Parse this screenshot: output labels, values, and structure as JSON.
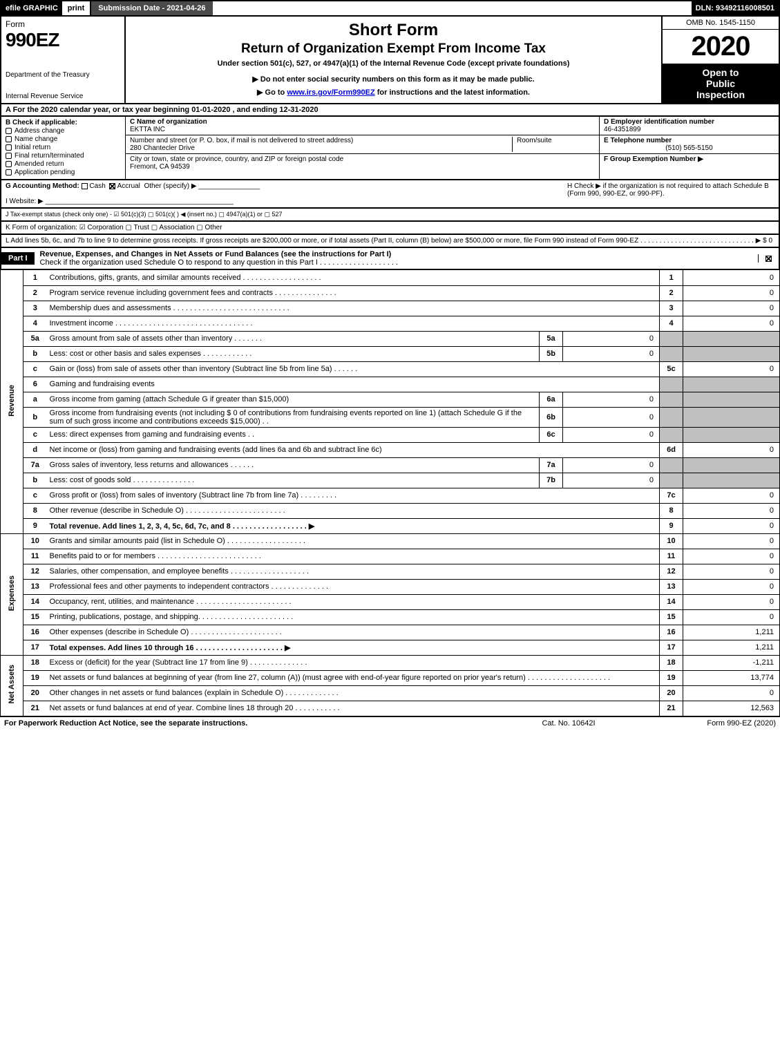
{
  "topbar": {
    "efile": "efile GRAPHIC",
    "print": "print",
    "submission": "Submission Date - 2021-04-26",
    "dln": "DLN: 93492116008501"
  },
  "header": {
    "form_label": "Form",
    "form_code": "990EZ",
    "dept1": "Department of the Treasury",
    "dept2": "Internal Revenue Service",
    "title1": "Short Form",
    "title2": "Return of Organization Exempt From Income Tax",
    "title3": "Under section 501(c), 527, or 4947(a)(1) of the Internal Revenue Code (except private foundations)",
    "title4": "▶ Do not enter social security numbers on this form as it may be made public.",
    "title5_pre": "▶ Go to ",
    "title5_link": "www.irs.gov/Form990EZ",
    "title5_post": " for instructions and the latest information.",
    "omb": "OMB No. 1545-1150",
    "year": "2020",
    "open1": "Open to",
    "open2": "Public",
    "open3": "Inspection"
  },
  "rowA": "A  For the 2020 calendar year, or tax year beginning 01-01-2020 , and ending 12-31-2020",
  "boxB": {
    "hdr": "B  Check if applicable:",
    "items": [
      "Address change",
      "Name change",
      "Initial return",
      "Final return/terminated",
      "Amended return",
      "Application pending"
    ]
  },
  "boxC": {
    "name_lbl": "C Name of organization",
    "name": "EKTTA INC",
    "addr_lbl": "Number and street (or P. O. box, if mail is not delivered to street address)",
    "addr": "280 Chantecler Drive",
    "room_lbl": "Room/suite",
    "city_lbl": "City or town, state or province, country, and ZIP or foreign postal code",
    "city": "Fremont, CA  94539"
  },
  "boxD": {
    "ein_lbl": "D Employer identification number",
    "ein": "46-4351899",
    "tel_lbl": "E Telephone number",
    "tel": "(510) 565-5150",
    "grp_lbl": "F Group Exemption Number  ▶"
  },
  "rowG": {
    "left_pre": "G Accounting Method:   ",
    "cash": "Cash",
    "accrual": "Accrual",
    "other": "Other (specify) ▶",
    "h": "H  Check ▶       if the organization is not required to attach Schedule B (Form 990, 990-EZ, or 990-PF)."
  },
  "rowI": "I Website: ▶",
  "rowJ": "J Tax-exempt status (check only one) -  ☑ 501(c)(3)   ▢ 501(c)(  ) ◀ (insert no.)  ▢ 4947(a)(1) or  ▢ 527",
  "rowK": "K Form of organization:    ☑ Corporation    ▢ Trust    ▢ Association    ▢ Other",
  "rowL": "L Add lines 5b, 6c, and 7b to line 9 to determine gross receipts. If gross receipts are $200,000 or more, or if total assets (Part II, column (B) below) are $500,000 or more, file Form 990 instead of Form 990-EZ  .  .  .  .  .  .  .  .  .  .  .  .  .  .  .  .  .  .  .  .  .  .  .  .  .  .  .  .  .  .  ▶ $ 0",
  "part1": {
    "tag": "Part I",
    "title": "Revenue, Expenses, and Changes in Net Assets or Fund Balances (see the instructions for Part I)",
    "sub": "Check if the organization used Schedule O to respond to any question in this Part I  .  .  .  .  .  .  .  .  .  .  .  .  .  .  .  .  .  .  ."
  },
  "cats": {
    "rev": "Revenue",
    "exp": "Expenses",
    "net": "Net Assets"
  },
  "lines": {
    "1": {
      "d": "Contributions, gifts, grants, and similar amounts received  .  .  .  .  .  .  .  .  .  .  .  .  .  .  .  .  .  .  .",
      "v": "0"
    },
    "2": {
      "d": "Program service revenue including government fees and contracts  .  .  .  .  .  .  .  .  .  .  .  .  .  .  .",
      "v": "0"
    },
    "3": {
      "d": "Membership dues and assessments  .  .  .  .  .  .  .  .  .  .  .  .  .  .  .  .  .  .  .  .  .  .  .  .  .  .  .  .",
      "v": "0"
    },
    "4": {
      "d": "Investment income  .  .  .  .  .  .  .  .  .  .  .  .  .  .  .  .  .  .  .  .  .  .  .  .  .  .  .  .  .  .  .  .  .",
      "v": "0"
    },
    "5a": {
      "d": "Gross amount from sale of assets other than inventory  .  .  .  .  .  .  .",
      "sl": "5a",
      "sv": "0"
    },
    "5b": {
      "d": "Less: cost or other basis and sales expenses  .  .  .  .  .  .  .  .  .  .  .  .",
      "sl": "5b",
      "sv": "0"
    },
    "5c": {
      "d": "Gain or (loss) from sale of assets other than inventory (Subtract line 5b from line 5a)  .  .  .  .  .  .",
      "v": "0"
    },
    "6": {
      "d": "Gaming and fundraising events"
    },
    "6a": {
      "d": "Gross income from gaming (attach Schedule G if greater than $15,000)",
      "sl": "6a",
      "sv": "0"
    },
    "6b": {
      "d": "Gross income from fundraising events (not including $  0                 of contributions from fundraising events reported on line 1) (attach Schedule G if the sum of such gross income and contributions exceeds $15,000)       .  .",
      "sl": "6b",
      "sv": "0"
    },
    "6c": {
      "d": "Less: direct expenses from gaming and fundraising events        .  .",
      "sl": "6c",
      "sv": "0"
    },
    "6d": {
      "d": "Net income or (loss) from gaming and fundraising events (add lines 6a and 6b and subtract line 6c)",
      "v": "0"
    },
    "7a": {
      "d": "Gross sales of inventory, less returns and allowances  .  .  .  .  .  .",
      "sl": "7a",
      "sv": "0"
    },
    "7b": {
      "d": "Less: cost of goods sold        .  .  .  .  .  .  .  .  .  .  .  .  .  .  .",
      "sl": "7b",
      "sv": "0"
    },
    "7c": {
      "d": "Gross profit or (loss) from sales of inventory (Subtract line 7b from line 7a)  .  .  .  .  .  .  .  .  .",
      "v": "0"
    },
    "8": {
      "d": "Other revenue (describe in Schedule O)  .  .  .  .  .  .  .  .  .  .  .  .  .  .  .  .  .  .  .  .  .  .  .  .",
      "v": "0"
    },
    "9": {
      "d": "Total revenue. Add lines 1, 2, 3, 4, 5c, 6d, 7c, and 8   .  .  .  .  .  .  .  .  .  .  .  .  .  .  .  .  .  .     ▶",
      "v": "0",
      "bold": true
    },
    "10": {
      "d": "Grants and similar amounts paid (list in Schedule O)  .  .  .  .  .  .  .  .  .  .  .  .  .  .  .  .  .  .  .",
      "v": "0"
    },
    "11": {
      "d": "Benefits paid to or for members      .  .  .  .  .  .  .  .  .  .  .  .  .  .  .  .  .  .  .  .  .  .  .  .  .",
      "v": "0"
    },
    "12": {
      "d": "Salaries, other compensation, and employee benefits  .  .  .  .  .  .  .  .  .  .  .  .  .  .  .  .  .  .  .",
      "v": "0"
    },
    "13": {
      "d": "Professional fees and other payments to independent contractors  .  .  .  .  .  .  .  .  .  .  .  .  .  .",
      "v": "0"
    },
    "14": {
      "d": "Occupancy, rent, utilities, and maintenance  .  .  .  .  .  .  .  .  .  .  .  .  .  .  .  .  .  .  .  .  .  .  .",
      "v": "0"
    },
    "15": {
      "d": "Printing, publications, postage, and shipping.  .  .  .  .  .  .  .  .  .  .  .  .  .  .  .  .  .  .  .  .  .  .",
      "v": "0"
    },
    "16": {
      "d": "Other expenses (describe in Schedule O)      .  .  .  .  .  .  .  .  .  .  .  .  .  .  .  .  .  .  .  .  .  .",
      "v": "1,211"
    },
    "17": {
      "d": "Total expenses. Add lines 10 through 16      .  .  .  .  .  .  .  .  .  .  .  .  .  .  .  .  .  .  .  .  .   ▶",
      "v": "1,211",
      "bold": true
    },
    "18": {
      "d": "Excess or (deficit) for the year (Subtract line 17 from line 9)        .  .  .  .  .  .  .  .  .  .  .  .  .  .",
      "v": "-1,211"
    },
    "19": {
      "d": "Net assets or fund balances at beginning of year (from line 27, column (A)) (must agree with end-of-year figure reported on prior year's return)  .  .  .  .  .  .  .  .  .  .  .  .  .  .  .  .  .  .  .  .",
      "v": "13,774"
    },
    "20": {
      "d": "Other changes in net assets or fund balances (explain in Schedule O)  .  .  .  .  .  .  .  .  .  .  .  .  .",
      "v": "0"
    },
    "21": {
      "d": "Net assets or fund balances at end of year. Combine lines 18 through 20  .  .  .  .  .  .  .  .  .  .  .",
      "v": "12,563"
    }
  },
  "footer": {
    "l": "For Paperwork Reduction Act Notice, see the separate instructions.",
    "m": "Cat. No. 10642I",
    "r": "Form 990-EZ (2020)"
  },
  "colors": {
    "black": "#000000",
    "white": "#ffffff",
    "shade": "#bfbfbf",
    "darkgray": "#4a4a4a",
    "link": "#0000cc"
  }
}
